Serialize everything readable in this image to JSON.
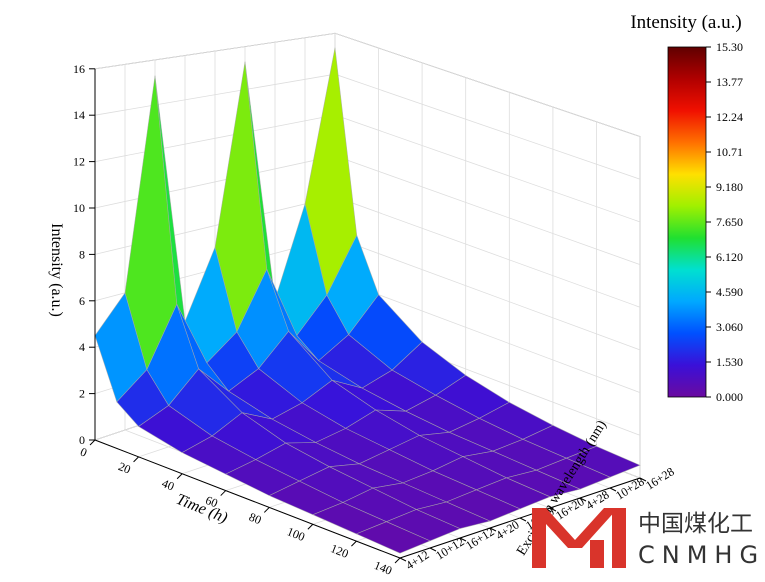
{
  "chart_data": {
    "type": "surface3d",
    "zlabel": "Intensity (a.u.)",
    "xlabel": "Time (h)",
    "ylabel": "Excitation wavelength (nm)",
    "x": [
      0,
      10,
      20,
      40,
      60,
      80,
      100,
      120,
      140
    ],
    "xlim": [
      0,
      140
    ],
    "xticks": [
      0,
      20,
      40,
      60,
      80,
      100,
      120,
      140
    ],
    "y_categories": [
      "4+12",
      "10+12",
      "16+12",
      "4+20",
      "10+20",
      "16+20",
      "4+28",
      "10+28",
      "16+28"
    ],
    "zlim": [
      0,
      16
    ],
    "zticks": [
      0,
      2,
      4,
      6,
      8,
      10,
      12,
      14,
      16
    ],
    "z": [
      [
        4.5,
        2.0,
        1.3,
        0.9,
        0.7,
        0.5,
        0.4,
        0.3,
        0.2
      ],
      [
        6.0,
        3.0,
        1.8,
        1.2,
        0.9,
        0.7,
        0.5,
        0.4,
        0.3
      ],
      [
        15.3,
        5.5,
        3.0,
        1.8,
        1.2,
        0.9,
        0.7,
        0.5,
        0.4
      ],
      [
        4.0,
        2.5,
        1.6,
        1.1,
        0.8,
        0.6,
        0.5,
        0.4,
        0.3
      ],
      [
        7.0,
        3.5,
        2.2,
        1.4,
        1.0,
        0.8,
        0.6,
        0.5,
        0.4
      ],
      [
        15.3,
        6.0,
        3.5,
        2.0,
        1.4,
        1.0,
        0.8,
        0.6,
        0.5
      ],
      [
        3.8,
        2.5,
        1.7,
        1.2,
        0.9,
        0.7,
        0.6,
        0.5,
        0.4
      ],
      [
        8.0,
        4.0,
        2.5,
        1.6,
        1.2,
        0.9,
        0.7,
        0.6,
        0.5
      ],
      [
        15.3,
        6.5,
        4.0,
        2.5,
        1.7,
        1.2,
        0.9,
        0.7,
        0.6
      ]
    ],
    "colorbar": {
      "title": "Intensity (a.u.)",
      "clim": [
        0,
        15.3
      ],
      "ticks": [
        {
          "value": 0,
          "label": "0.000"
        },
        {
          "value": 1.53,
          "label": "1.530"
        },
        {
          "value": 3.06,
          "label": "3.060"
        },
        {
          "value": 4.59,
          "label": "4.590"
        },
        {
          "value": 6.12,
          "label": "6.120"
        },
        {
          "value": 7.65,
          "label": "7.650"
        },
        {
          "value": 9.18,
          "label": "9.180"
        },
        10.71,
        12.24,
        13.77,
        {
          "value": 15.3,
          "label": "15.30"
        }
      ],
      "colormap": [
        "#6a0aa0",
        "#3a10d8",
        "#0050ff",
        "#00a8ff",
        "#00e0d0",
        "#20e030",
        "#a0f000",
        "#ffe000",
        "#ff7000",
        "#f01000",
        "#b00000",
        "#600000"
      ]
    }
  },
  "watermark": {
    "cn": "中国煤化工",
    "en": "CNMHG"
  }
}
